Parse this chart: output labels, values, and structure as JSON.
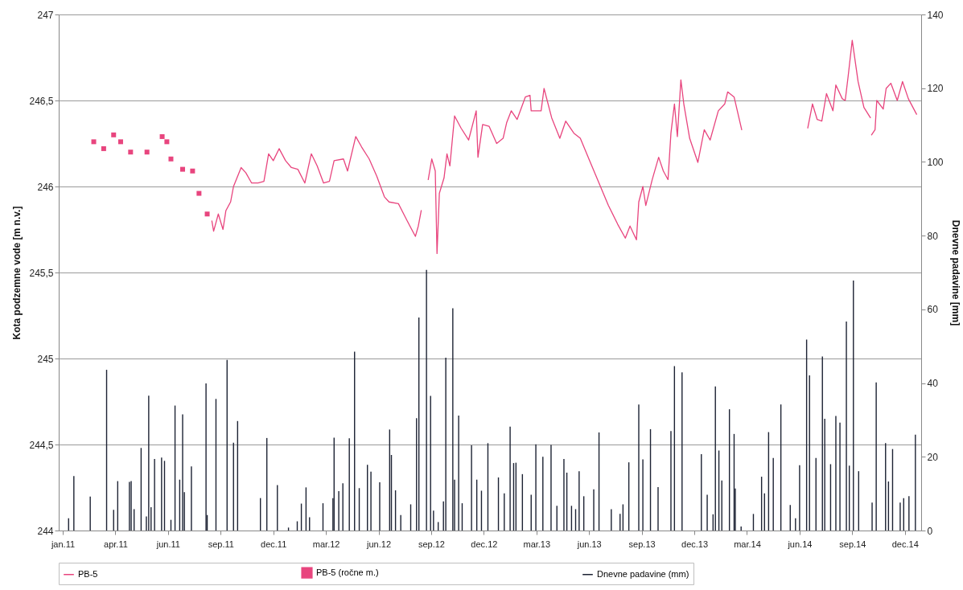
{
  "chart_data": {
    "type": "line",
    "ylabel": "Kota podzemne vode [m n.v.]",
    "y2label": "Dnevne padavine [mm]",
    "xlim": [
      "2011-01-01",
      "2015-01-01"
    ],
    "xticks": [
      {
        "value": "2011-01-01",
        "label": "jan.11"
      },
      {
        "value": "2011-04-01",
        "label": "apr.11"
      },
      {
        "value": "2011-06-30",
        "label": "jun.11"
      },
      {
        "value": "2011-09-28",
        "label": "sep.11"
      },
      {
        "value": "2011-12-27",
        "label": "dec.11"
      },
      {
        "value": "2012-03-26",
        "label": "mar.12"
      },
      {
        "value": "2012-06-24",
        "label": "jun.12"
      },
      {
        "value": "2012-09-22",
        "label": "sep.12"
      },
      {
        "value": "2012-12-21",
        "label": "dec.12"
      },
      {
        "value": "2013-03-21",
        "label": "mar.13"
      },
      {
        "value": "2013-06-19",
        "label": "jun.13"
      },
      {
        "value": "2013-09-17",
        "label": "sep.13"
      },
      {
        "value": "2013-12-16",
        "label": "dec.13"
      },
      {
        "value": "2014-03-16",
        "label": "mar.14"
      },
      {
        "value": "2014-06-14",
        "label": "jun.14"
      },
      {
        "value": "2014-09-12",
        "label": "sep.14"
      },
      {
        "value": "2014-12-11",
        "label": "dec.14"
      }
    ],
    "ylim": [
      244,
      247
    ],
    "yticks": [
      244,
      {
        "value": 244.5,
        "label": "244,5"
      },
      245,
      {
        "value": 245.5,
        "label": "245,5"
      },
      246,
      {
        "value": 246.5,
        "label": "246,5"
      },
      247
    ],
    "y2lim": [
      0,
      140
    ],
    "y2ticks": [
      0,
      20,
      40,
      60,
      80,
      100,
      120,
      140
    ],
    "grid": "y",
    "legend": "bottom",
    "series": [
      {
        "name": "PB-5",
        "color": "#e8457e",
        "line_style": "solid",
        "x": [
          "2011-09-13",
          "2011-09-16",
          "2011-09-24",
          "2011-10-02",
          "2011-10-07",
          "2011-10-15",
          "2011-10-20",
          "2011-11-02",
          "2011-11-10",
          "2011-11-20",
          "2011-12-01",
          "2011-12-11",
          "2011-12-19",
          "2011-12-27",
          "2012-01-06",
          "2012-01-17",
          "2012-01-27",
          "2012-02-07",
          "2012-02-19",
          "2012-03-01",
          "2012-03-11",
          "2012-03-22",
          "2012-04-01",
          "2012-04-09",
          "2012-04-25",
          "2012-05-02",
          "2012-05-16",
          "2012-05-26",
          "2012-06-08",
          "2012-06-21",
          "2012-07-04",
          "2012-07-12",
          "2012-07-28",
          "2012-08-12",
          "2012-08-26",
          "2012-08-31",
          "2012-09-05",
          "2012-09-10",
          "2012-09-17",
          "2012-09-23",
          "2012-09-29",
          "2012-10-02",
          "2012-10-06",
          "2012-10-14",
          "2012-10-19",
          "2012-10-24",
          "2012-11-01",
          "2012-11-12",
          "2012-11-25",
          "2012-12-08",
          "2012-12-11",
          "2012-12-19",
          "2012-12-30",
          "2013-01-12",
          "2013-01-23",
          "2013-01-29",
          "2013-02-06",
          "2013-02-16",
          "2013-03-02",
          "2013-03-10",
          "2013-03-12",
          "2013-03-29",
          "2013-04-03",
          "2013-04-16",
          "2013-04-30",
          "2013-05-10",
          "2013-05-24",
          "2013-06-04",
          "2013-06-20",
          "2013-07-06",
          "2013-07-22",
          "2013-08-07",
          "2013-08-20",
          "2013-08-28",
          "2013-09-08",
          "2013-09-12",
          "2013-09-19",
          "2013-09-24",
          "2013-10-05",
          "2013-10-16",
          "2013-10-24",
          "2013-11-01",
          "2013-11-06",
          "2013-11-12",
          "2013-11-17",
          "2013-11-23",
          "2013-11-28",
          "2013-12-08",
          "2013-12-22",
          "2014-01-02",
          "2014-01-12",
          "2014-01-26",
          "2014-02-06",
          "2014-02-11",
          "2014-02-22",
          "2014-03-07",
          "2014-05-01",
          "2014-06-28",
          "2014-07-06",
          "2014-07-14",
          "2014-07-22",
          "2014-07-30",
          "2014-08-10",
          "2014-08-15",
          "2014-08-26",
          "2014-08-31",
          "2014-09-05",
          "2014-09-12",
          "2014-09-22",
          "2014-10-02",
          "2014-10-13",
          "2014-10-14",
          "2014-10-15",
          "2014-10-21",
          "2014-10-24",
          "2014-11-04",
          "2014-11-09",
          "2014-11-17",
          "2014-11-28",
          "2014-12-07",
          "2014-12-17",
          "2014-12-31"
        ],
        "values": [
          245.8,
          245.74,
          245.84,
          245.75,
          245.86,
          245.91,
          246.0,
          246.11,
          246.08,
          246.02,
          246.02,
          246.03,
          246.19,
          246.15,
          246.22,
          246.15,
          246.11,
          246.1,
          246.02,
          246.19,
          246.12,
          246.02,
          246.03,
          246.15,
          246.16,
          246.09,
          246.29,
          246.23,
          246.16,
          246.06,
          245.94,
          245.91,
          245.9,
          245.8,
          245.71,
          245.77,
          245.86,
          null,
          246.04,
          246.16,
          246.09,
          245.61,
          245.96,
          246.05,
          246.19,
          246.12,
          246.41,
          246.34,
          246.27,
          246.44,
          246.17,
          246.36,
          246.35,
          246.25,
          246.28,
          246.37,
          246.44,
          246.39,
          246.52,
          246.53,
          246.44,
          246.44,
          246.57,
          246.4,
          246.28,
          246.38,
          246.31,
          246.28,
          246.15,
          246.02,
          245.89,
          245.78,
          245.7,
          245.77,
          245.69,
          245.91,
          246.0,
          245.89,
          246.04,
          246.17,
          246.09,
          246.04,
          246.31,
          246.48,
          246.29,
          246.62,
          246.48,
          246.28,
          246.14,
          246.33,
          246.27,
          246.44,
          246.48,
          246.55,
          246.52,
          246.33,
          null,
          246.34,
          246.48,
          246.39,
          246.38,
          246.54,
          246.44,
          246.59,
          246.51,
          246.5,
          246.64,
          246.85,
          246.61,
          246.46,
          246.4,
          null,
          246.3,
          246.33,
          246.5,
          246.45,
          246.57,
          246.6,
          246.5,
          246.61,
          246.51,
          246.42
        ]
      },
      {
        "name": "PB-5 (ročne m.)",
        "type": "scatter",
        "color": "#e8457e",
        "marker": "square",
        "x": [
          "2011-02-23",
          "2011-03-12",
          "2011-03-29",
          "2011-04-10",
          "2011-04-27",
          "2011-05-25",
          "2011-06-20",
          "2011-06-28",
          "2011-07-05",
          "2011-07-25",
          "2011-08-11",
          "2011-08-22",
          "2011-09-05"
        ],
        "values": [
          246.26,
          246.22,
          246.3,
          246.26,
          246.2,
          246.2,
          246.29,
          246.26,
          246.16,
          246.1,
          246.09,
          245.96,
          245.84
        ]
      },
      {
        "name": "Dnevne padavine (mm)",
        "type": "bar",
        "axis": "y2",
        "color": "#1c2233",
        "x": [
          "2011-01-11",
          "2011-01-20",
          "2011-02-17",
          "2011-03-17",
          "2011-03-29",
          "2011-04-05",
          "2011-04-25",
          "2011-04-28",
          "2011-05-03",
          "2011-05-15",
          "2011-05-24",
          "2011-05-28",
          "2011-06-01",
          "2011-06-07",
          "2011-06-19",
          "2011-06-24",
          "2011-07-05",
          "2011-07-12",
          "2011-07-20",
          "2011-07-25",
          "2011-07-28",
          "2011-08-09",
          "2011-09-03",
          "2011-09-05",
          "2011-09-20",
          "2011-10-09",
          "2011-10-20",
          "2011-10-27",
          "2011-12-05",
          "2011-12-16",
          "2012-01-03",
          "2012-01-22",
          "2012-02-06",
          "2012-02-13",
          "2012-02-21",
          "2012-02-27",
          "2012-03-21",
          "2012-04-07",
          "2012-04-09",
          "2012-04-17",
          "2012-04-24",
          "2012-05-05",
          "2012-05-14",
          "2012-05-22",
          "2012-06-05",
          "2012-06-11",
          "2012-06-26",
          "2012-07-13",
          "2012-07-16",
          "2012-07-23",
          "2012-08-01",
          "2012-08-18",
          "2012-08-28",
          "2012-09-01",
          "2012-09-14",
          "2012-09-21",
          "2012-09-26",
          "2012-10-04",
          "2012-10-13",
          "2012-10-17",
          "2012-10-29",
          "2012-11-01",
          "2012-11-08",
          "2012-11-14",
          "2012-11-30",
          "2012-12-09",
          "2012-12-17",
          "2012-12-28",
          "2013-01-15",
          "2013-01-25",
          "2013-02-04",
          "2013-02-10",
          "2013-02-14",
          "2013-02-25",
          "2013-03-12",
          "2013-03-20",
          "2013-04-01",
          "2013-04-15",
          "2013-04-25",
          "2013-05-07",
          "2013-05-12",
          "2013-05-20",
          "2013-05-27",
          "2013-06-02",
          "2013-06-10",
          "2013-06-27",
          "2013-07-06",
          "2013-07-27",
          "2013-08-11",
          "2013-08-16",
          "2013-08-26",
          "2013-09-12",
          "2013-09-19",
          "2013-10-02",
          "2013-10-15",
          "2013-11-06",
          "2013-11-12",
          "2013-11-25",
          "2013-12-28",
          "2014-01-07",
          "2014-01-17",
          "2014-01-21",
          "2014-01-27",
          "2014-02-01",
          "2014-02-14",
          "2014-02-22",
          "2014-02-24",
          "2014-03-06",
          "2014-03-27",
          "2014-04-10",
          "2014-04-15",
          "2014-04-22",
          "2014-04-30",
          "2014-05-13",
          "2014-05-29",
          "2014-06-07",
          "2014-06-14",
          "2014-06-26",
          "2014-07-01",
          "2014-07-12",
          "2014-07-23",
          "2014-07-27",
          "2014-08-06",
          "2014-08-15",
          "2014-08-22",
          "2014-09-02",
          "2014-09-07",
          "2014-09-14",
          "2014-09-23",
          "2014-10-16",
          "2014-10-23",
          "2014-11-08",
          "2014-11-13",
          "2014-11-20",
          "2014-12-03",
          "2014-12-09",
          "2014-12-18",
          "2014-12-29"
        ],
        "values": [
          3.3,
          14.8,
          9.2,
          43.6,
          5.6,
          13.4,
          13.2,
          13.4,
          5.8,
          22.4,
          3.8,
          36.6,
          6.3,
          19.4,
          19.8,
          18.9,
          2.9,
          33.9,
          13.8,
          31.5,
          10.4,
          17.4,
          39.9,
          4.2,
          35.7,
          46.3,
          23.8,
          29.7,
          8.8,
          25.1,
          12.3,
          0.8,
          2.5,
          7.3,
          11.7,
          3.6,
          7.4,
          8.8,
          25.2,
          10.7,
          12.8,
          25.0,
          48.5,
          11.5,
          17.8,
          16.0,
          13.1,
          27.4,
          20.5,
          10.9,
          4.2,
          7.1,
          30.5,
          57.8,
          70.7,
          36.5,
          5.4,
          2.3,
          7.9,
          46.9,
          60.3,
          13.8,
          31.2,
          7.4,
          23.1,
          13.8,
          10.8,
          23.7,
          14.4,
          10.1,
          28.2,
          18.3,
          18.4,
          15.3,
          9.7,
          23.4,
          20.0,
          23.2,
          6.7,
          19.4,
          15.7,
          6.7,
          5.8,
          16.1,
          9.3,
          11.2,
          26.6,
          5.8,
          4.5,
          7.1,
          18.5,
          34.2,
          19.3,
          27.5,
          11.8,
          27.0,
          44.6,
          42.9,
          20.7,
          9.7,
          4.4,
          39.1,
          21.7,
          13.6,
          32.9,
          26.2,
          11.4,
          1.1,
          4.5,
          14.6,
          10.1,
          26.7,
          19.7,
          34.2,
          6.9,
          3.3,
          17.7,
          51.8,
          42.1,
          19.7,
          47.2,
          30.3,
          18.0,
          31.1,
          29.3,
          56.7,
          17.6,
          67.8,
          16.1,
          7.6,
          40.2,
          23.7,
          13.3,
          22.1,
          7.6,
          8.8,
          9.3,
          26.0
        ]
      }
    ]
  }
}
